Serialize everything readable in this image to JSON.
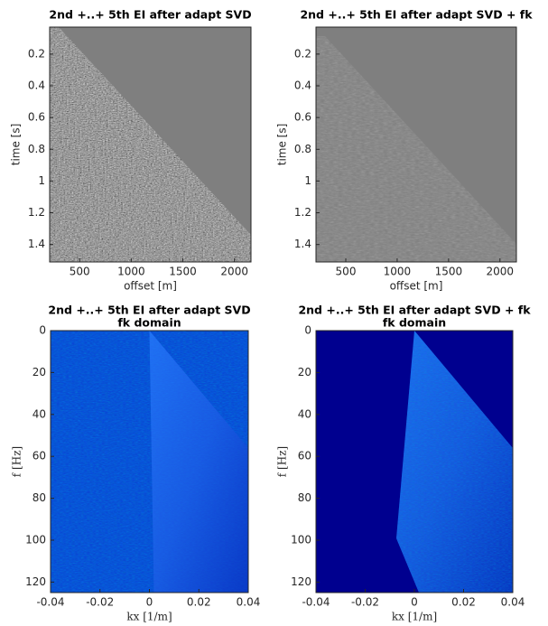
{
  "chart_data": [
    {
      "type": "image",
      "title": "2nd +..+ 5th EI  after adapt SVD",
      "xlabel": "offset [m]",
      "ylabel": "time [s]",
      "xlim": [
        210,
        2160
      ],
      "ylim": [
        0.03,
        1.51
      ],
      "xticks": [
        500,
        1000,
        1500,
        2000
      ],
      "yticks": [
        0.2,
        0.4,
        0.6,
        0.8,
        1,
        1.2,
        1.4
      ],
      "y_reversed": true
    },
    {
      "type": "image",
      "title": "2nd +..+ 5th EI  after adapt SVD + fk",
      "xlabel": "offset [m]",
      "ylabel": "time [s]",
      "xlim": [
        210,
        2160
      ],
      "ylim": [
        0.03,
        1.51
      ],
      "xticks": [
        500,
        1000,
        1500,
        2000
      ],
      "yticks": [
        0.2,
        0.4,
        0.6,
        0.8,
        1,
        1.2,
        1.4
      ],
      "y_reversed": true
    },
    {
      "type": "image",
      "title": "2nd +..+ 5th EI  after adapt SVD",
      "subtitle": "fk domain",
      "xlabel": "kx [1/m]",
      "ylabel": "f [Hz]",
      "xlim": [
        -0.04,
        0.04
      ],
      "ylim": [
        0,
        125
      ],
      "xticks": [
        -0.04,
        -0.02,
        0,
        0.02,
        0.04
      ],
      "yticks": [
        0,
        20,
        40,
        60,
        80,
        100,
        120
      ],
      "y_reversed": true
    },
    {
      "type": "image",
      "title": "2nd +..+ 5th EI  after adapt SVD + fk",
      "subtitle": "fk domain",
      "xlabel": "kx [1/m]",
      "ylabel": "f [Hz]",
      "xlim": [
        -0.04,
        0.04
      ],
      "ylim": [
        0,
        125
      ],
      "xticks": [
        -0.04,
        -0.02,
        0,
        0.02,
        0.04
      ],
      "yticks": [
        0,
        20,
        40,
        60,
        80,
        100,
        120
      ],
      "y_reversed": true
    }
  ]
}
